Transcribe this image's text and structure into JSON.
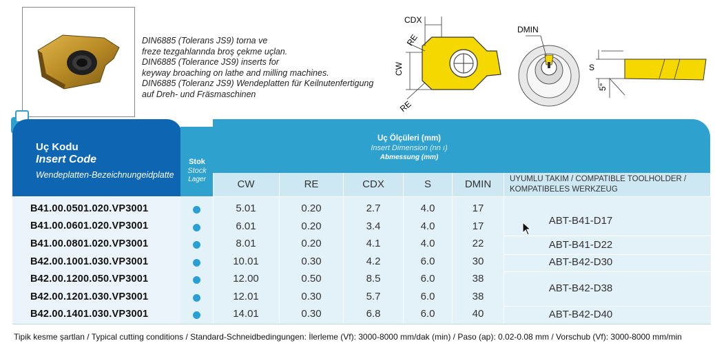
{
  "description": [
    "DIN6885 (Tolerans JS9) torna ve",
    "freze tezgahlannda broş çekme uçlan.",
    "DIN6885 (Tolerance JS9) inserts for",
    "keyway broaching on lathe and milling machines.",
    "DIN6885 (Toleranz JS9) Wendeplatten für Keilnutenfertigung",
    "auf Dreh- und Fräsmaschinen"
  ],
  "diagram_labels": {
    "cdx": "CDX",
    "re_top": "RE",
    "re_bottom": "RE",
    "cw": "CW",
    "dmin": "DMIN",
    "s": "S",
    "angle": "5°"
  },
  "header": {
    "code_tr": "Uç Kodu",
    "code_en": "Insert Code",
    "code_de": "Wendeplatten-Bezeichnungeidplatte",
    "stok_tr": "Stok",
    "stok_en": "Stock",
    "stok_de": "Lager",
    "dim_tr": "Uç Ölçüleri (mm)",
    "dim_en": "Insert Dimension (nn ı)",
    "dim_de": "Abmessung (mm)"
  },
  "columns": {
    "cw": "CW",
    "re": "RE",
    "cdx": "CDX",
    "s": "S",
    "dmin": "DMIN",
    "holder": "UYUMLU TAKIM / COMPATIBLE TOOLHOLDER / KOMPATIBELES WERKZEUG"
  },
  "rows": [
    {
      "code": "B41.00.0501.020.VP3001",
      "cw": "5.01",
      "re": "0.20",
      "cdx": "2.7",
      "s": "4.0",
      "dmin": "17"
    },
    {
      "code": "B41.00.0601.020.VP3001",
      "cw": "6.01",
      "re": "0.20",
      "cdx": "3.4",
      "s": "4.0",
      "dmin": "17"
    },
    {
      "code": "B41.00.0801.020.VP3001",
      "cw": "8.01",
      "re": "0.20",
      "cdx": "4.1",
      "s": "4.0",
      "dmin": "22"
    },
    {
      "code": "B42.00.1001.030.VP3001",
      "cw": "10.01",
      "re": "0.30",
      "cdx": "4.2",
      "s": "6.0",
      "dmin": "30"
    },
    {
      "code": "B42.00.1200.050.VP3001",
      "cw": "12.00",
      "re": "0.50",
      "cdx": "8.5",
      "s": "6.0",
      "dmin": "38"
    },
    {
      "code": "B42.00.1201.030.VP3001",
      "cw": "12.01",
      "re": "0.30",
      "cdx": "5.7",
      "s": "6.0",
      "dmin": "38"
    },
    {
      "code": "B42.00.1401.030.VP3001",
      "cw": "14.01",
      "re": "0.30",
      "cdx": "6.8",
      "s": "6.0",
      "dmin": "40"
    }
  ],
  "holders": [
    "ABT-B41-D17",
    "ABT-B41-D22",
    "ABT-B42-D30",
    "ABT-B42-D38",
    "ABT-B42-D40"
  ],
  "footer": "Tipik kesme şartlan / Typical cutting conditions / Standard-Schneidbedingungen: İlerleme (Vf): 3000-8000 mm/dak (min) / Paso (ap): 0.02-0.08 mm / Vorschub (Vf): 3000-8000 mm/min",
  "colors": {
    "header_dark": "#0e66b3",
    "header_light": "#2ea1cf",
    "stock_dot": "#2a9fd6",
    "insert_yellow": "#f5d800"
  }
}
